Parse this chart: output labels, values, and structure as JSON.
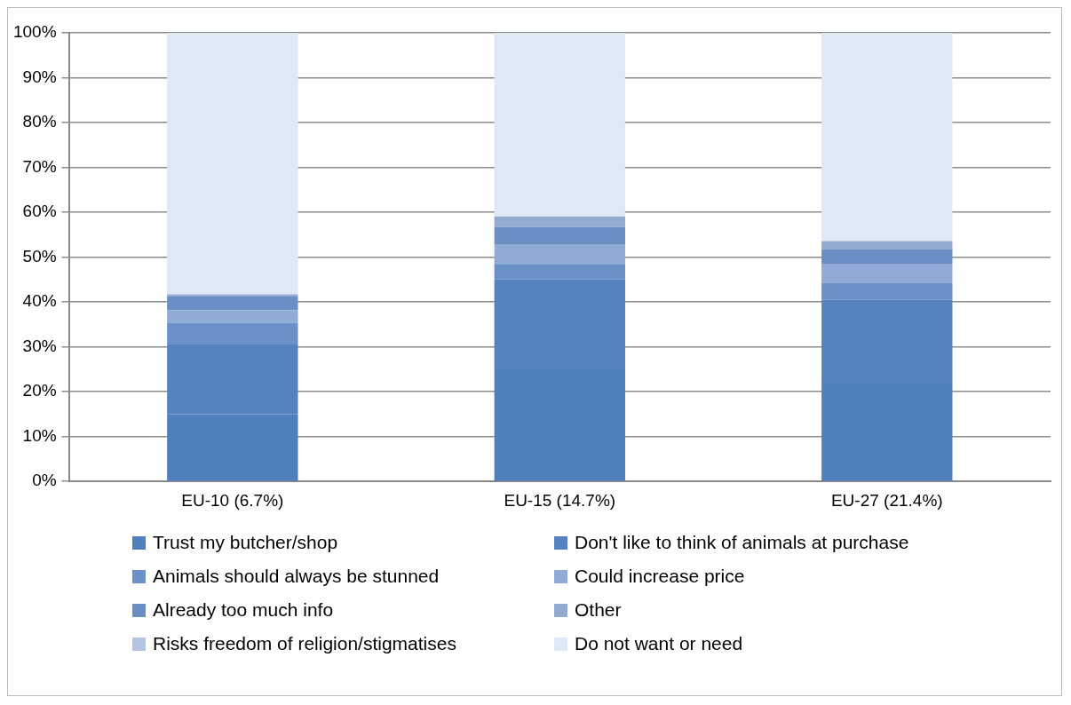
{
  "chart_data": {
    "type": "bar",
    "stacked": true,
    "categories": [
      "EU-10 (6.7%)",
      "EU-15 (14.7%)",
      "EU-27 (21.4%)"
    ],
    "series": [
      {
        "name": "Trust my butcher/shop",
        "color": "#4f7fbc",
        "values": [
          15,
          25,
          22
        ]
      },
      {
        "name": "Don't like to think of animals at purchase",
        "color": "#5683c0",
        "values": [
          15.5,
          20,
          18.5
        ]
      },
      {
        "name": "Animals should always be stunned",
        "color": "#6b92c8",
        "values": [
          4.8,
          3.5,
          3.7
        ]
      },
      {
        "name": "Could increase price",
        "color": "#90acd6",
        "values": [
          2.9,
          4.4,
          4.2
        ]
      },
      {
        "name": "Already too much info",
        "color": "#6a8fc4",
        "values": [
          3,
          3.8,
          3.4
        ]
      },
      {
        "name": "Other",
        "color": "#95aad0",
        "values": [
          0.5,
          2.4,
          1.8
        ]
      },
      {
        "name": "Risks freedom of religion/stigmatises",
        "color": "#b3c5e3",
        "values": [
          0,
          0,
          0
        ]
      },
      {
        "name": "Do not want or need",
        "color": "#dfe8f5",
        "values": [
          58.3,
          41,
          46.4
        ]
      }
    ],
    "ylim": [
      0,
      100
    ],
    "yticks": [
      {
        "value": 0,
        "label": "0%"
      },
      {
        "value": 10,
        "label": "10%"
      },
      {
        "value": 20,
        "label": "20%"
      },
      {
        "value": 30,
        "label": "30%"
      },
      {
        "value": 40,
        "label": "40%"
      },
      {
        "value": 50,
        "label": "50%"
      },
      {
        "value": 60,
        "label": "60%"
      },
      {
        "value": 70,
        "label": "70%"
      },
      {
        "value": 80,
        "label": "80%"
      },
      {
        "value": 90,
        "label": "90%"
      },
      {
        "value": 100,
        "label": "100%"
      }
    ],
    "grid": "y",
    "legend": "bottom"
  }
}
